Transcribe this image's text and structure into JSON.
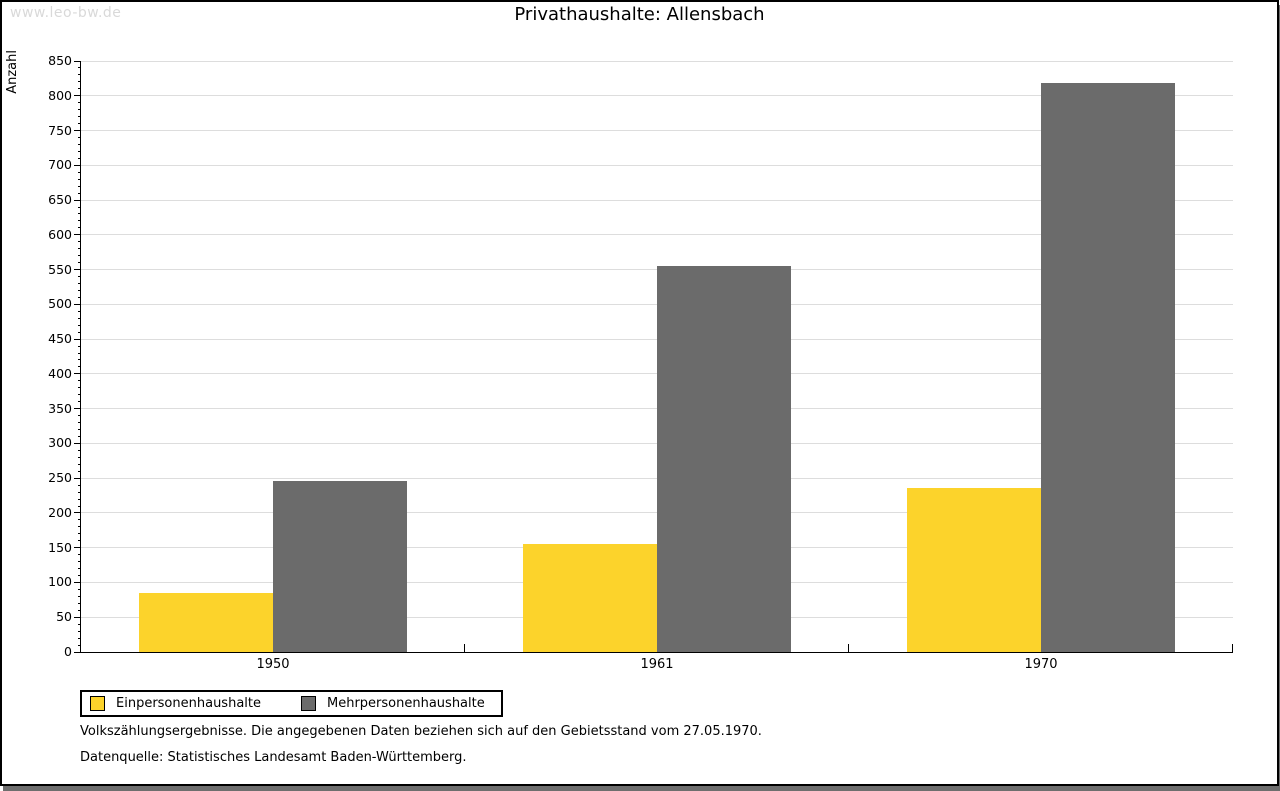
{
  "watermark": "www.leo-bw.de",
  "title": "Privathaushalte: Allensbach",
  "chart_data": {
    "type": "bar",
    "title": "Privathaushalte: Allensbach",
    "categories": [
      "1950",
      "1961",
      "1970"
    ],
    "series": [
      {
        "name": "Einpersonenhaushalte",
        "color": "#FCD32B",
        "values": [
          85,
          156,
          236
        ]
      },
      {
        "name": "Mehrpersonenhaushalte",
        "color": "#6B6B6B",
        "values": [
          246,
          555,
          818
        ]
      }
    ],
    "xlabel": "",
    "ylabel": "Anzahl",
    "ylim": [
      0,
      850
    ],
    "ytick_step": 50,
    "yminor_step": 10,
    "grid": true,
    "gridline_color": "#dddddd",
    "legend_position": "bottom-left"
  },
  "footer": {
    "note": "Volkszählungsergebnisse. Die angegebenen Daten beziehen sich auf den Gebietsstand vom 27.05.1970.",
    "source": "Datenquelle: Statistisches Landesamt Baden-Württemberg."
  }
}
